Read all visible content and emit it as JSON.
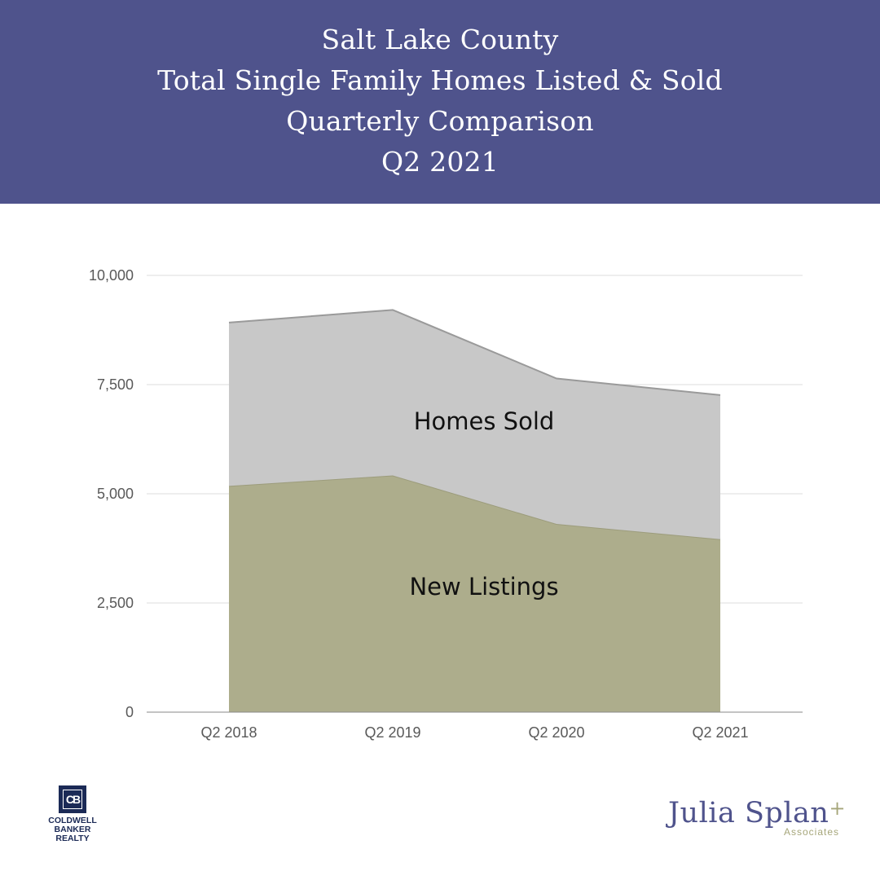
{
  "header": {
    "lines": [
      "Salt Lake County",
      "Total Single Family Homes Listed & Sold",
      "Quarterly Comparison",
      "Q2 2021"
    ]
  },
  "chart_data": {
    "type": "area",
    "stacked": true,
    "categories": [
      "Q2 2018",
      "Q2 2019",
      "Q2 2020",
      "Q2 2021"
    ],
    "series": [
      {
        "name": "New Listings",
        "values": [
          5180,
          5420,
          4310,
          3960
        ],
        "color": "#adad8c"
      },
      {
        "name": "Homes Sold",
        "values": [
          3740,
          3790,
          3330,
          3300
        ],
        "color": "#c8c8c8"
      }
    ],
    "ylim": [
      0,
      10000
    ],
    "yticks": [
      "0",
      "2,500",
      "5,000",
      "7,500",
      "10,000"
    ],
    "ytick_values": [
      0,
      2500,
      5000,
      7500,
      10000
    ],
    "grid": true,
    "legend": "none"
  },
  "logos": {
    "coldwell": {
      "mark": "CB",
      "lines": [
        "COLDWELL",
        "BANKER",
        "REALTY"
      ]
    },
    "julia": {
      "name": "Julia Splan",
      "plus": "+",
      "sub": "Associates"
    }
  }
}
